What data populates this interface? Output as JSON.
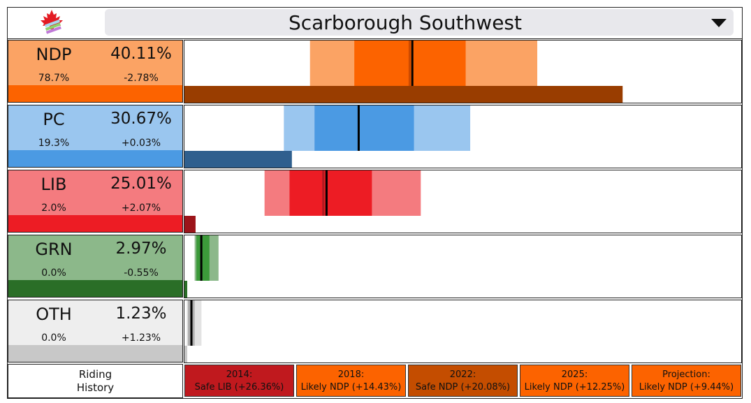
{
  "riding": {
    "name": "Scarborough Southwest"
  },
  "colors": {
    "NDP": {
      "light": "#fba364",
      "mid": "#fc6300",
      "dark": "#993d00",
      "marker": "#cc4a00"
    },
    "PC": {
      "light": "#9ac6ef",
      "mid": "#4b9ae3",
      "dark": "#2f5f8e"
    },
    "LIB": {
      "light": "#f47b7f",
      "mid": "#ed1c24",
      "dark": "#9c141a",
      "marker": "#b01a20"
    },
    "GRN": {
      "light": "#8cb88a",
      "mid": "#3c9a3a",
      "dark": "#2a6e27"
    },
    "OTH": {
      "light": "#e3e3e3",
      "mid": "#b0b0b0",
      "dark": "#c8c8c8"
    }
  },
  "chart_data": {
    "type": "bar",
    "categories": [
      "NDP",
      "PC",
      "LIB",
      "GRN",
      "OTH"
    ],
    "vote_share_pct": [
      40.11,
      30.67,
      25.01,
      2.97,
      1.23
    ],
    "vote_share_labels": [
      "40.11%",
      "30.67%",
      "25.01%",
      "2.97%",
      "1.23%"
    ],
    "win_probability_labels": [
      "78.7%",
      "19.3%",
      "2.0%",
      "0.0%",
      "0.0%"
    ],
    "win_probability_pct": [
      78.7,
      19.3,
      2.0,
      0.0,
      0.0
    ],
    "change_labels": [
      "-2.78%",
      "+0.03%",
      "+2.07%",
      "-0.55%",
      "+1.23%"
    ],
    "ranges": [
      {
        "party": "NDP",
        "outer": [
          22.1,
          62.1
        ],
        "inner": [
          29.9,
          49.5
        ]
      },
      {
        "party": "PC",
        "outer": [
          17.5,
          50.3
        ],
        "inner": [
          22.9,
          40.4
        ]
      },
      {
        "party": "LIB",
        "outer": [
          14.1,
          41.6
        ],
        "inner": [
          18.5,
          33.0
        ]
      },
      {
        "party": "GRN",
        "outer": [
          1.8,
          6.0
        ],
        "inner": [
          2.1,
          4.4
        ]
      },
      {
        "party": "OTH",
        "outer": [
          0.4,
          3.0
        ],
        "inner": [
          0.6,
          1.8
        ]
      }
    ],
    "previous_share_marker": [
      39.7,
      null,
      24.5,
      null,
      null
    ],
    "xlim": [
      0,
      98
    ]
  },
  "history": {
    "label_line1": "Riding",
    "label_line2": "History",
    "entries": [
      {
        "year": "2014:",
        "result": "Safe LIB (+26.36%)",
        "color": "#c0191e"
      },
      {
        "year": "2018:",
        "result": "Likely NDP (+14.43%)",
        "color": "#fc6300"
      },
      {
        "year": "2022:",
        "result": "Safe NDP (+20.08%)",
        "color": "#c44d00"
      },
      {
        "year": "2025:",
        "result": "Likely NDP (+12.25%)",
        "color": "#fc6300"
      },
      {
        "year": "Projection:",
        "result": "Likely NDP (+9.44%)",
        "color": "#fc6300"
      }
    ]
  }
}
